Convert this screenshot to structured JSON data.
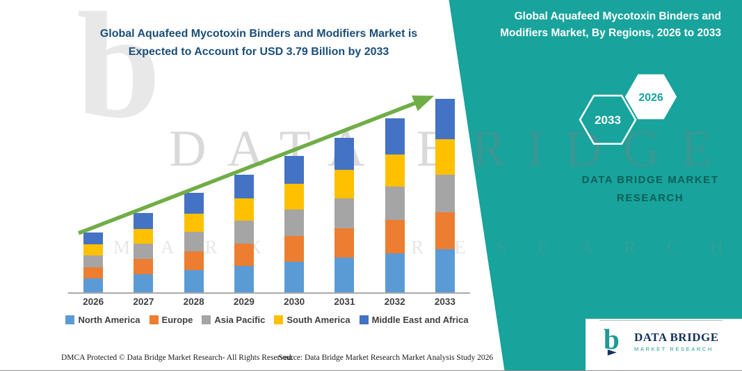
{
  "page": {
    "left_title": "Global Aquafeed Mycotoxin Binders and Modifiers Market is Expected to Account for USD 3.79 Billion by 2033",
    "right_title": "Global Aquafeed Mycotoxin Binders and Modifiers Market, By Regions, 2026 to 2033",
    "brand_caption": "DATA BRIDGE MARKET RESEARCH",
    "watermark": {
      "glyph": "b",
      "line1": "DATA BRIDGE",
      "line2": "MARKET RESEARCH"
    },
    "hexagons": [
      {
        "label": "2033"
      },
      {
        "label": "2026"
      }
    ],
    "footer": {
      "dmca": "DMCA Protected © Data Bridge Market Research-  All Rights Reserved.",
      "source": "Source: Data Bridge Market Research  Market Analysis Study 2026"
    },
    "logo": {
      "name": "DATA BRIDGE",
      "sub": "MARKET RESEARCH"
    },
    "colors": {
      "teal_background": "#18A39C",
      "title_navy": "#1B4E79",
      "arrow": "#70AD47",
      "logo_navy": "#16325C",
      "logo_teal": "#1D9B94"
    }
  },
  "chart_data": {
    "type": "bar",
    "stacked": true,
    "title": "Global Aquafeed Mycotoxin Binders and Modifiers Market is Expected to Account for USD 3.79 Billion by 2033",
    "xlabel": "",
    "ylabel": "",
    "unit": "USD Billion",
    "ylim": [
      0,
      4.0
    ],
    "grid": false,
    "legend_position": "bottom",
    "trend_arrow": true,
    "categories": [
      "2026",
      "2027",
      "2028",
      "2029",
      "2030",
      "2031",
      "2032",
      "2033"
    ],
    "series": [
      {
        "name": "North America",
        "color": "#5B9BD5",
        "values": [
          0.27,
          0.35,
          0.44,
          0.52,
          0.6,
          0.68,
          0.77,
          0.85
        ]
      },
      {
        "name": "Europe",
        "color": "#ED7D31",
        "values": [
          0.22,
          0.3,
          0.37,
          0.44,
          0.51,
          0.58,
          0.65,
          0.72
        ]
      },
      {
        "name": "Asia Pacific",
        "color": "#A5A5A5",
        "values": [
          0.23,
          0.3,
          0.38,
          0.45,
          0.52,
          0.59,
          0.66,
          0.74
        ]
      },
      {
        "name": "South America",
        "color": "#FFC000",
        "values": [
          0.22,
          0.29,
          0.36,
          0.43,
          0.5,
          0.56,
          0.63,
          0.7
        ]
      },
      {
        "name": "Middle East and Africa",
        "color": "#4472C4",
        "values": [
          0.24,
          0.32,
          0.4,
          0.47,
          0.55,
          0.62,
          0.7,
          0.78
        ]
      }
    ],
    "totals": [
      1.18,
      1.56,
      1.94,
      2.3,
      2.68,
      3.04,
      3.41,
      3.79
    ]
  }
}
